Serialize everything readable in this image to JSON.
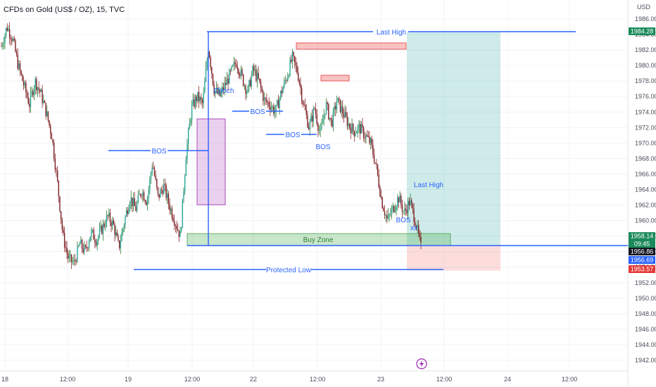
{
  "header": {
    "symbol_title": "CFDs on Gold (US$ / OZ), 15, TVC",
    "currency": "USD"
  },
  "colors": {
    "up": "#26a69a",
    "down": "#ef5350",
    "candle_body_up": "#1b7f5a",
    "candle_body_down": "#7a1f24",
    "annotation": "#2962ff",
    "target_zone": "#26a69a",
    "stop_zone": "#ef5350",
    "buy_zone": "#4caf50",
    "fvg_zone": "#ba68c8"
  },
  "chart_data": {
    "type": "candlestick",
    "ylim": [
      1941,
      1987
    ],
    "y_ticks": [
      1942,
      1944,
      1946,
      1948,
      1950,
      1952,
      1954,
      1956,
      1958,
      1960,
      1962,
      1964,
      1966,
      1968,
      1970,
      1972,
      1974,
      1976,
      1978,
      1980,
      1982,
      1984,
      1986
    ],
    "x_ticks": [
      "18",
      "12:00",
      "19",
      "12:00",
      "22",
      "12:00",
      "23",
      "12:00",
      "24",
      "12:00"
    ],
    "close_trace": [
      1982.5,
      1985.0,
      1983.5,
      1980.0,
      1977.5,
      1975.0,
      1978.0,
      1976.5,
      1974.0,
      1971.0,
      1965.0,
      1958.0,
      1955.0,
      1954.5,
      1957.0,
      1956.0,
      1958.5,
      1957.5,
      1959.0,
      1960.5,
      1959.5,
      1956.5,
      1960.0,
      1963.0,
      1961.5,
      1964.0,
      1962.5,
      1967.5,
      1963.0,
      1964.5,
      1962.0,
      1960.0,
      1958.0,
      1968.5,
      1974.5,
      1976.0,
      1975.0,
      1982.5,
      1977.0,
      1976.0,
      1977.5,
      1979.0,
      1980.5,
      1978.5,
      1976.5,
      1979.5,
      1978.0,
      1975.5,
      1975.0,
      1974.0,
      1976.5,
      1978.5,
      1981.0,
      1979.0,
      1975.0,
      1972.0,
      1974.5,
      1971.0,
      1975.0,
      1972.5,
      1975.5,
      1974.0,
      1972.5,
      1971.5,
      1972.0,
      1971.0,
      1970.0,
      1967.0,
      1962.5,
      1960.0,
      1961.5,
      1963.0,
      1961.0,
      1962.5,
      1960.0,
      1956.5
    ],
    "levels": [
      {
        "label": "Last High",
        "value": 1984.28
      },
      {
        "label": "Protected Low",
        "value": 1953.57
      },
      {
        "label": "Buy Zone",
        "value": 1958.14
      }
    ],
    "annotations": [
      "BOS",
      "BOS",
      "BOS",
      "BOS",
      "BOS",
      "Last High",
      "Buy Zone",
      "Protected Low",
      "Choch",
      "xx"
    ],
    "price_labels": [
      {
        "value": "1984.28",
        "kind": "target"
      },
      {
        "value": "1958.14",
        "kind": "last"
      },
      {
        "value": "09:45",
        "kind": "countdown"
      },
      {
        "value": "1956.86",
        "kind": "entry"
      },
      {
        "value": "1956.69",
        "kind": "current"
      },
      {
        "value": "1953.57",
        "kind": "stop"
      }
    ]
  }
}
